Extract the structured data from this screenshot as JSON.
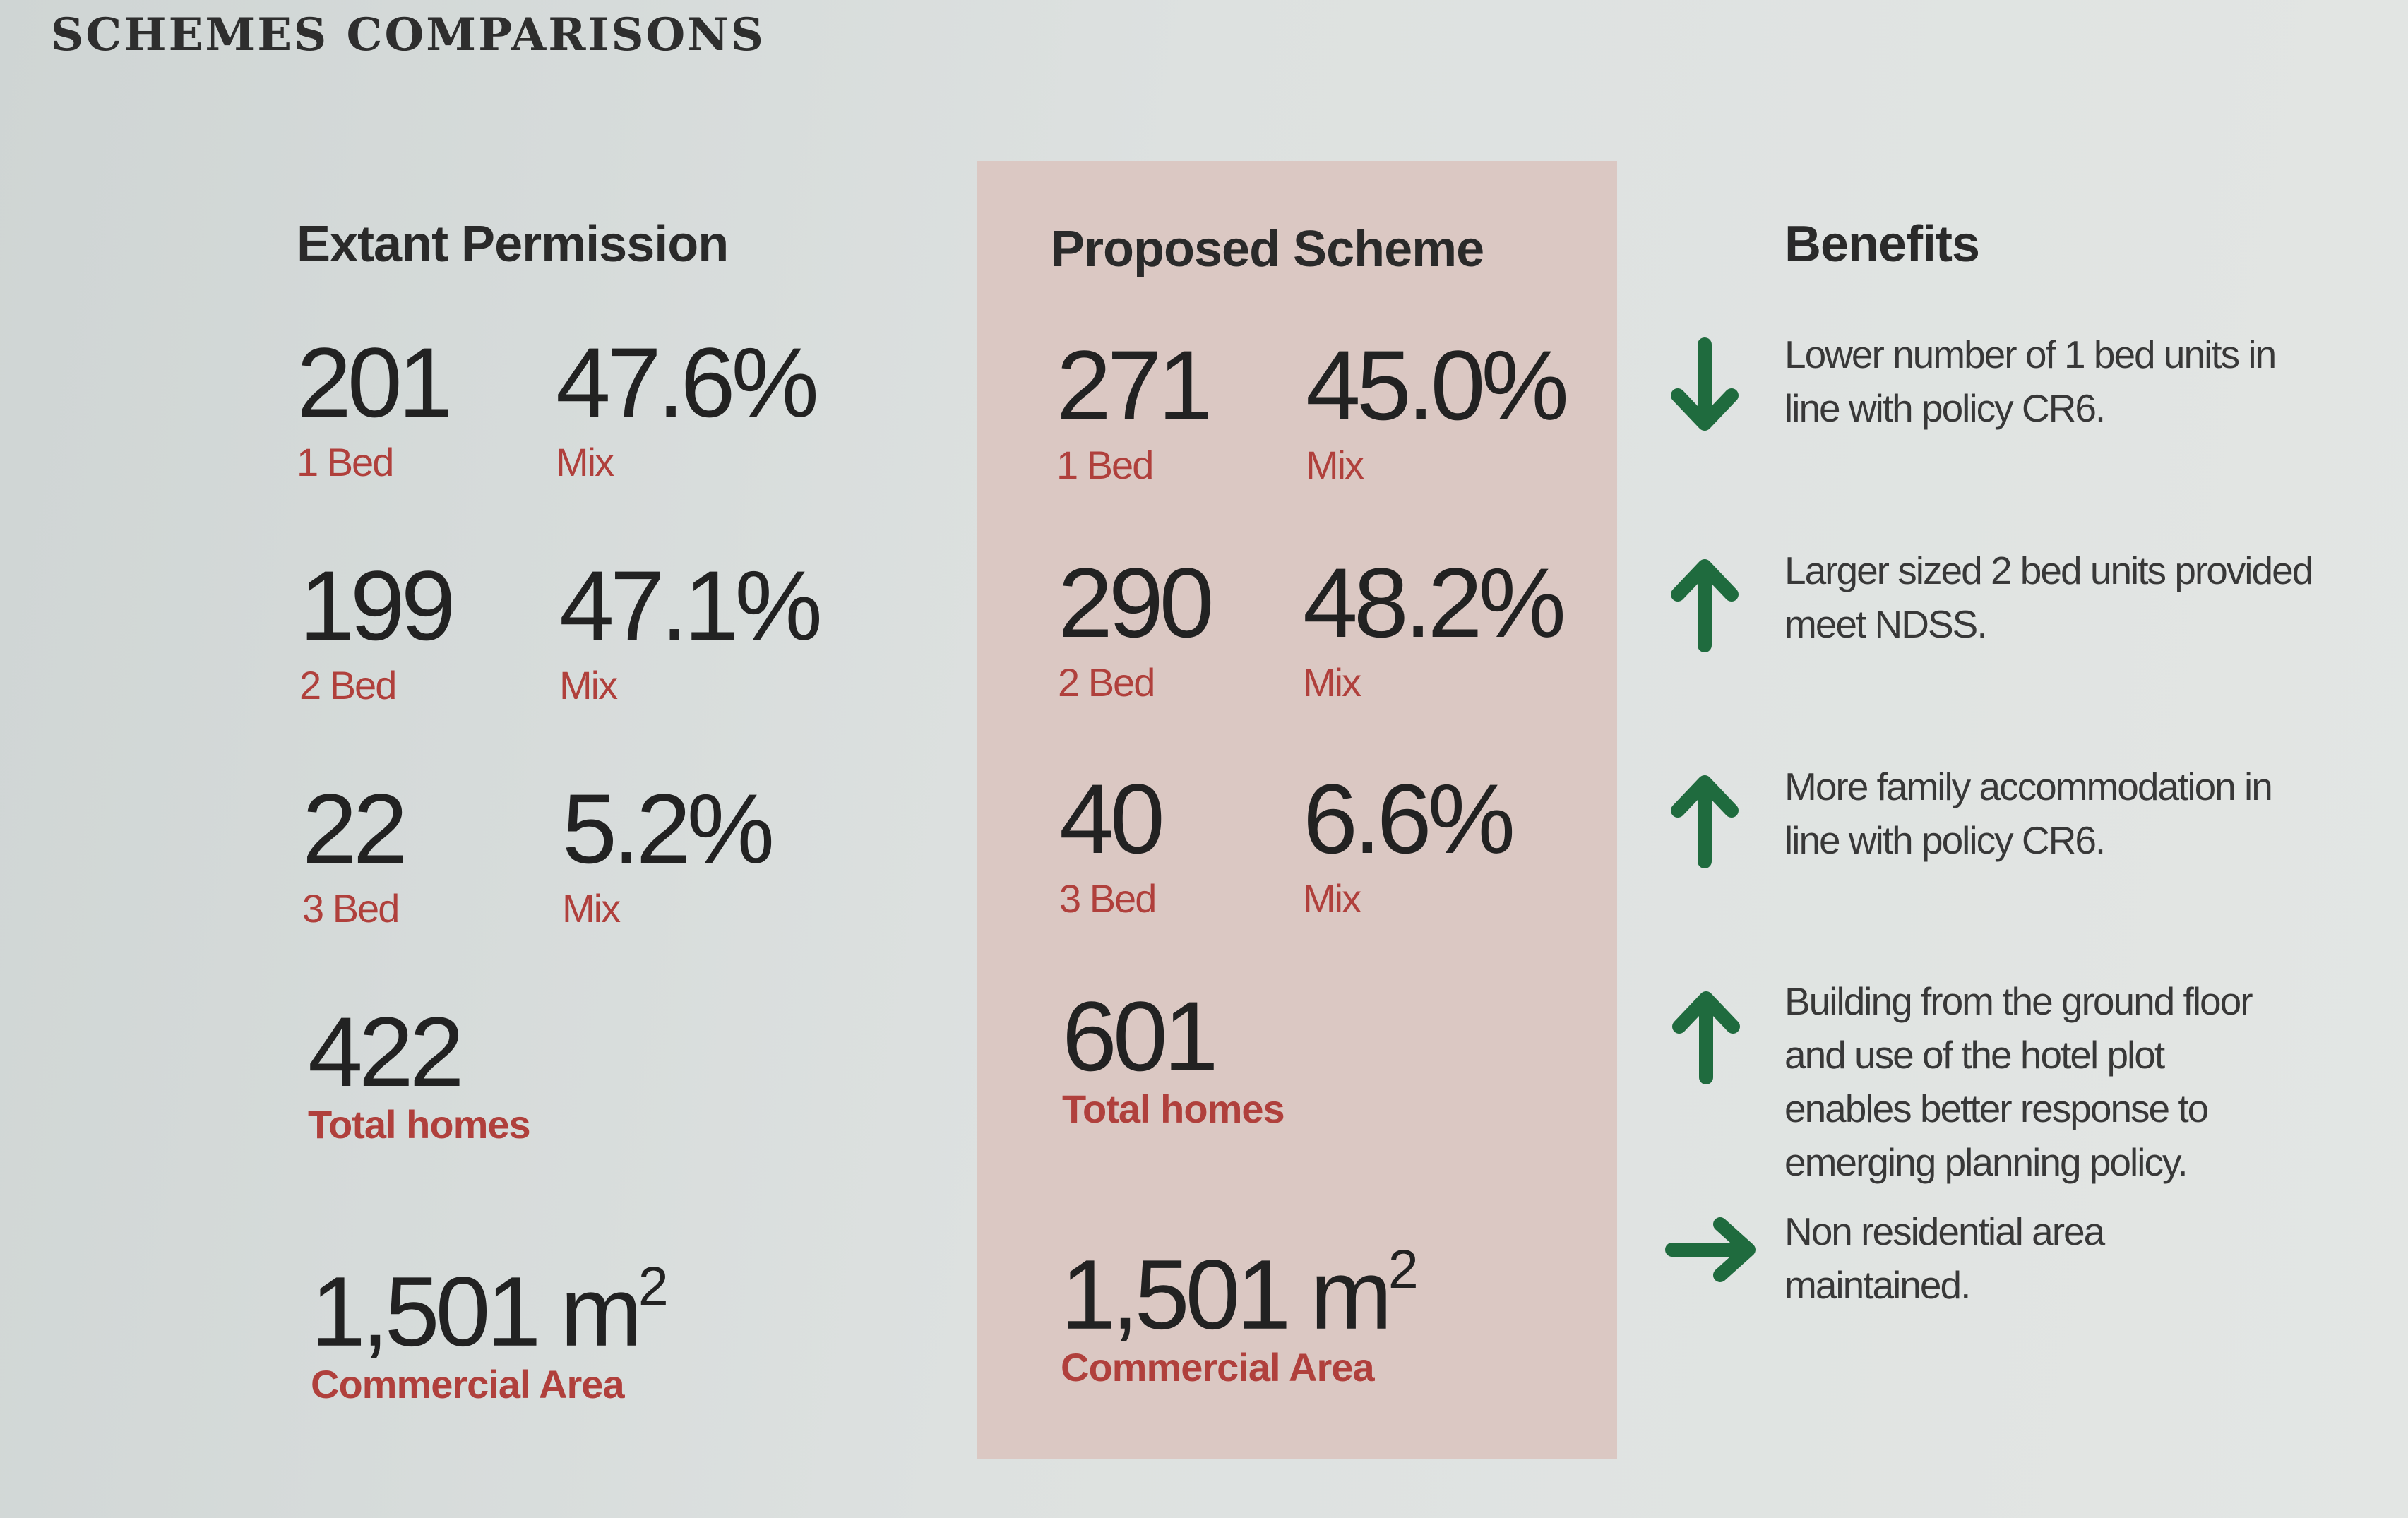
{
  "title": "SCHEMES COMPARISONS",
  "extant": {
    "heading": "Extant Permission",
    "rows": [
      {
        "count": "201",
        "count_label": "1 Bed",
        "mix": "47.6%",
        "mix_label": "Mix"
      },
      {
        "count": "199",
        "count_label": "2 Bed",
        "mix": "47.1%",
        "mix_label": "Mix"
      },
      {
        "count": "22",
        "count_label": "3 Bed",
        "mix": "5.2%",
        "mix_label": "Mix"
      }
    ],
    "total": "422",
    "total_label": "Total homes",
    "commercial": "1,501 m",
    "commercial_unit": "2",
    "commercial_label": "Commercial Area"
  },
  "proposed": {
    "heading": "Proposed Scheme",
    "rows": [
      {
        "count": "271",
        "count_label": "1 Bed",
        "mix": "45.0%",
        "mix_label": "Mix"
      },
      {
        "count": "290",
        "count_label": "2 Bed",
        "mix": "48.2%",
        "mix_label": "Mix"
      },
      {
        "count": "40",
        "count_label": "3 Bed",
        "mix": "6.6%",
        "mix_label": "Mix"
      }
    ],
    "total": "601",
    "total_label": "Total homes",
    "commercial": "1,501 m",
    "commercial_unit": "2",
    "commercial_label": "Commercial Area"
  },
  "benefits": {
    "heading": "Benefits",
    "items": [
      {
        "icon": "arrow-down-icon",
        "text": "Lower number of 1 bed units in line with policy CR6."
      },
      {
        "icon": "arrow-up-icon",
        "text": "Larger sized 2 bed units provided meet NDSS."
      },
      {
        "icon": "arrow-up-icon",
        "text": "More family accommodation in line with policy CR6."
      },
      {
        "icon": "arrow-up-icon",
        "text": "Building from the ground floor and use of the hotel plot enables better response to emerging planning policy."
      },
      {
        "icon": "arrow-right-icon",
        "text": "Non residential area maintained."
      }
    ]
  },
  "colors": {
    "accent_red": "#b0403c",
    "arrow_green": "#1f6b3e",
    "panel": "#dbc8c3"
  }
}
